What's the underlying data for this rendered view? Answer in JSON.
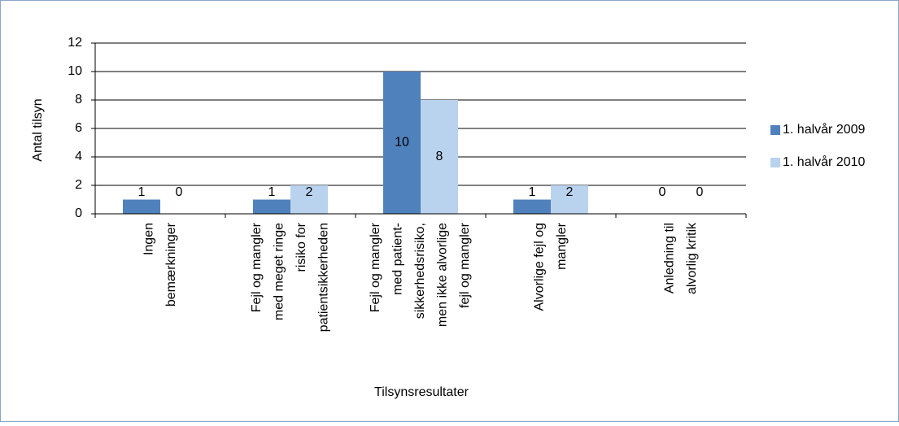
{
  "chart_data": {
    "type": "bar",
    "categories": [
      [
        "Ingen",
        "bemærkninger"
      ],
      [
        "Fejl og mangler",
        "med meget ringe",
        "risiko for",
        "patientsikkerheden"
      ],
      [
        "Fejl og mangler",
        "med patient-",
        "sikkerhedsrisiko,",
        "men ikke alvorlige",
        "fejl og mangler"
      ],
      [
        "Alvorlige fejl og",
        "mangler"
      ],
      [
        "Anledning til",
        "alvorlig kritik"
      ]
    ],
    "series": [
      {
        "name": "1. halvår 2009",
        "color": "#4f81bd",
        "values": [
          1,
          1,
          10,
          1,
          0
        ]
      },
      {
        "name": "1. halvår 2010",
        "color": "#b9d3ef",
        "values": [
          0,
          2,
          8,
          2,
          0
        ]
      }
    ],
    "ylim": [
      0,
      12
    ],
    "yticks": [
      0,
      2,
      4,
      6,
      8,
      10,
      12
    ],
    "grid": true,
    "ylabel": "Antal tilsyn",
    "xlabel": "Tilsynsresultater",
    "legend": "right"
  }
}
